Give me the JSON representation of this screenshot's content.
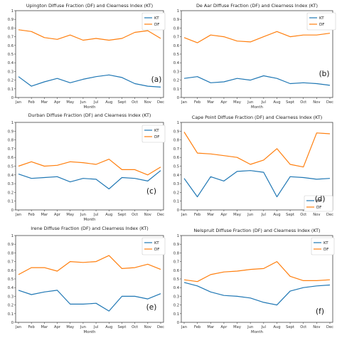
{
  "colors": {
    "KT": "#1f77b4",
    "DF": "#ff7f0e"
  },
  "month_labels": [
    "Jan",
    "Feb",
    "Mar",
    "Apr",
    "May",
    "Jun",
    "Jul",
    "Aug",
    "Sept",
    "Oct",
    "Nov",
    "Dec"
  ],
  "chart_data": [
    {
      "type": "line",
      "title": "Upington Diffuse Fraction (DF) and Clearness Index (KT)",
      "panel_label": "(a)",
      "xlabel": "Month",
      "ylabel": "",
      "ylim": [
        0,
        1.0
      ],
      "yticks": [
        "0",
        "0.1",
        "0.2",
        "0.3",
        "0.4",
        "0.5",
        "0.6",
        "0.7",
        "0.8",
        "0.9",
        "1"
      ],
      "legend_position": "top-right",
      "categories": [
        "Jan",
        "Feb",
        "Mar",
        "Apr",
        "May",
        "Jun",
        "Jul",
        "Aug",
        "Sept",
        "Oct",
        "Nov",
        "Dec"
      ],
      "series": [
        {
          "name": "KT",
          "values": [
            0.24,
            0.13,
            0.18,
            0.22,
            0.17,
            0.21,
            0.24,
            0.26,
            0.23,
            0.16,
            0.13,
            0.12
          ]
        },
        {
          "name": "DF",
          "values": [
            0.78,
            0.76,
            0.69,
            0.67,
            0.72,
            0.66,
            0.68,
            0.66,
            0.68,
            0.75,
            0.77,
            0.68
          ]
        }
      ]
    },
    {
      "type": "line",
      "title": "De Aar Diffuse Fraction (DF) and Clearness Index (KT)",
      "panel_label": "(b)",
      "xlabel": "Month",
      "ylabel": "",
      "ylim": [
        0,
        1.0
      ],
      "yticks": [
        "0",
        "0.1",
        "0.2",
        "0.3",
        "0.4",
        "0.5",
        "0.6",
        "0.7",
        "0.8",
        "0.9",
        "1"
      ],
      "legend_position": "top-right",
      "categories": [
        "Jan",
        "Feb",
        "Mar",
        "Apr",
        "May",
        "Jun",
        "Jul",
        "Aug",
        "Sept",
        "Oct",
        "Nov",
        "Dec"
      ],
      "series": [
        {
          "name": "KT",
          "values": [
            0.22,
            0.24,
            0.17,
            0.18,
            0.22,
            0.2,
            0.25,
            0.22,
            0.16,
            0.17,
            0.16,
            0.14
          ]
        },
        {
          "name": "DF",
          "values": [
            0.69,
            0.63,
            0.72,
            0.7,
            0.65,
            0.64,
            0.7,
            0.76,
            0.7,
            0.72,
            0.72,
            0.74
          ]
        }
      ]
    },
    {
      "type": "line",
      "title": "Durban Diffuse Fraction (DF) and Clearness Index (KT)",
      "panel_label": "(c)",
      "xlabel": "Month",
      "ylabel": "",
      "ylim": [
        0,
        1.0
      ],
      "yticks": [
        "0",
        "0.1",
        "0.2",
        "0.3",
        "0.4",
        "0.5",
        "0.6",
        "0.7",
        "0.8",
        "0.9",
        "1"
      ],
      "legend_position": "right",
      "categories": [
        "Jan",
        "Feb",
        "Mar",
        "Apr",
        "May",
        "Jun",
        "Jul",
        "Aug",
        "Sept",
        "Oct",
        "Nov",
        "Dec"
      ],
      "series": [
        {
          "name": "KT",
          "values": [
            0.41,
            0.36,
            0.37,
            0.38,
            0.32,
            0.36,
            0.35,
            0.24,
            0.37,
            0.36,
            0.33,
            0.45
          ]
        },
        {
          "name": "DF",
          "values": [
            0.5,
            0.55,
            0.5,
            0.51,
            0.55,
            0.54,
            0.52,
            0.58,
            0.46,
            0.46,
            0.4,
            0.49
          ]
        }
      ]
    },
    {
      "type": "line",
      "title": "Cape Point Diffuse Fraction (DF) and Clearness Index (KT)",
      "panel_label": "(d)",
      "xlabel": "",
      "ylabel": "",
      "ylim": [
        0,
        1.0
      ],
      "yticks": [
        "0",
        "0.1",
        "0.2",
        "0.3",
        "0.4",
        "0.5",
        "0.6",
        "0.7",
        "0.8",
        "0.9",
        "1"
      ],
      "legend_position": "lower-right",
      "categories": [
        "Jan",
        "Feb",
        "Mar",
        "Apr",
        "May",
        "Jun",
        "Jul",
        "Aug",
        "Sept",
        "Oct",
        "Nov",
        "Dec"
      ],
      "series": [
        {
          "name": "KT",
          "values": [
            0.36,
            0.15,
            0.38,
            0.33,
            0.44,
            0.45,
            0.43,
            0.15,
            0.38,
            0.37,
            0.35,
            0.36
          ]
        },
        {
          "name": "DF",
          "values": [
            0.89,
            0.65,
            0.64,
            0.62,
            0.6,
            0.52,
            0.57,
            0.7,
            0.52,
            0.49,
            0.88,
            0.87
          ]
        }
      ]
    },
    {
      "type": "line",
      "title": "Irene Diffuse Fraction (DF) and Clearness Index (KT)",
      "panel_label": "(e)",
      "xlabel": "Month",
      "ylabel": "",
      "ylim": [
        0,
        1.0
      ],
      "yticks": [
        "0",
        "0.1",
        "0.2",
        "0.3",
        "0.4",
        "0.5",
        "0.6",
        "0.7",
        "0.8",
        "0.9",
        "1"
      ],
      "legend_position": "top-right",
      "categories": [
        "Jan",
        "Feb",
        "Mar",
        "Apr",
        "May",
        "Jun",
        "Jul",
        "Aug",
        "Sept",
        "Oct",
        "Nov",
        "Dec"
      ],
      "series": [
        {
          "name": "KT",
          "values": [
            0.37,
            0.32,
            0.35,
            0.37,
            0.21,
            0.21,
            0.22,
            0.13,
            0.3,
            0.3,
            0.27,
            0.33
          ]
        },
        {
          "name": "DF",
          "values": [
            0.55,
            0.63,
            0.63,
            0.59,
            0.7,
            0.69,
            0.7,
            0.77,
            0.62,
            0.63,
            0.67,
            0.61
          ]
        }
      ]
    },
    {
      "type": "line",
      "title": "Nelspruit Diffuse Fraction (DF) and Clearness Index (KT)",
      "panel_label": "(f)",
      "xlabel": "Month",
      "ylabel": "",
      "ylim": [
        0,
        1.0
      ],
      "yticks": [
        "0",
        "0.1",
        "0.2",
        "0.3",
        "0.4",
        "0.5",
        "0.6",
        "0.7",
        "0.8",
        "0.9",
        "1"
      ],
      "legend_position": "top-right",
      "categories": [
        "Jan",
        "Feb",
        "Mar",
        "Apr",
        "May",
        "Jun",
        "Jul",
        "Aug",
        "Sept",
        "Oct",
        "Nov",
        "Dec"
      ],
      "series": [
        {
          "name": "KT",
          "values": [
            0.46,
            0.42,
            0.35,
            0.31,
            0.3,
            0.28,
            0.23,
            0.2,
            0.36,
            0.4,
            0.42,
            0.43
          ]
        },
        {
          "name": "DF",
          "values": [
            0.49,
            0.47,
            0.55,
            0.58,
            0.59,
            0.61,
            0.62,
            0.7,
            0.53,
            0.48,
            0.48,
            0.49
          ]
        }
      ]
    }
  ]
}
